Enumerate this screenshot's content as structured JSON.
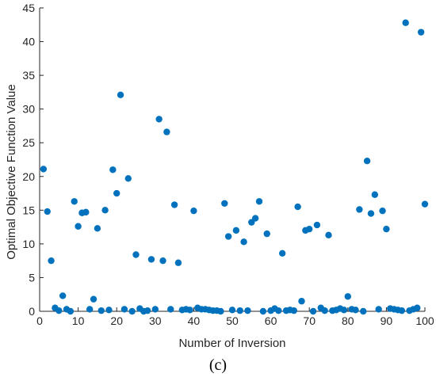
{
  "caption": "(c)",
  "colors": {
    "marker": "#0072BD",
    "axis": "#262626"
  },
  "chart_data": {
    "type": "scatter",
    "title": "",
    "xlabel": "Number of Inversion",
    "ylabel": "Optimal Objective Function Value",
    "xlim": [
      0,
      100
    ],
    "ylim": [
      0,
      45
    ],
    "xticks": [
      0,
      10,
      20,
      30,
      40,
      50,
      60,
      70,
      80,
      90,
      100
    ],
    "yticks": [
      0,
      5,
      10,
      15,
      20,
      25,
      30,
      35,
      40,
      45
    ],
    "grid": false,
    "legend": "none",
    "points": [
      [
        1,
        21.1
      ],
      [
        2,
        14.8
      ],
      [
        3,
        7.5
      ],
      [
        4,
        0.5
      ],
      [
        5,
        0.1
      ],
      [
        6,
        2.3
      ],
      [
        7,
        0.3
      ],
      [
        8,
        0.0
      ],
      [
        9,
        16.3
      ],
      [
        10,
        12.6
      ],
      [
        11,
        14.6
      ],
      [
        12,
        14.7
      ],
      [
        13,
        0.3
      ],
      [
        14,
        1.8
      ],
      [
        15,
        12.3
      ],
      [
        16,
        0.1
      ],
      [
        17,
        15.0
      ],
      [
        18,
        0.2
      ],
      [
        19,
        21.0
      ],
      [
        20,
        17.5
      ],
      [
        21,
        32.1
      ],
      [
        22,
        0.3
      ],
      [
        23,
        19.7
      ],
      [
        24,
        0.0
      ],
      [
        25,
        8.4
      ],
      [
        26,
        0.4
      ],
      [
        27,
        0.0
      ],
      [
        28,
        0.1
      ],
      [
        29,
        7.7
      ],
      [
        30,
        0.3
      ],
      [
        31,
        28.5
      ],
      [
        32,
        7.5
      ],
      [
        33,
        26.6
      ],
      [
        34,
        0.3
      ],
      [
        35,
        15.8
      ],
      [
        36,
        7.2
      ],
      [
        37,
        0.2
      ],
      [
        38,
        0.3
      ],
      [
        39,
        0.2
      ],
      [
        40,
        14.9
      ],
      [
        41,
        0.5
      ],
      [
        42,
        0.3
      ],
      [
        43,
        0.3
      ],
      [
        44,
        0.2
      ],
      [
        45,
        0.1
      ],
      [
        46,
        0.1
      ],
      [
        47,
        0.0
      ],
      [
        48,
        16.0
      ],
      [
        49,
        11.1
      ],
      [
        50,
        0.2
      ],
      [
        51,
        12.0
      ],
      [
        52,
        0.1
      ],
      [
        53,
        10.3
      ],
      [
        54,
        0.1
      ],
      [
        55,
        13.2
      ],
      [
        56,
        13.8
      ],
      [
        57,
        16.3
      ],
      [
        58,
        0.0
      ],
      [
        59,
        11.5
      ],
      [
        60,
        0.1
      ],
      [
        61,
        0.4
      ],
      [
        62,
        0.1
      ],
      [
        63,
        8.6
      ],
      [
        64,
        0.1
      ],
      [
        65,
        0.2
      ],
      [
        66,
        0.1
      ],
      [
        67,
        15.5
      ],
      [
        68,
        1.5
      ],
      [
        69,
        12.0
      ],
      [
        70,
        12.2
      ],
      [
        71,
        0.0
      ],
      [
        72,
        12.8
      ],
      [
        73,
        0.5
      ],
      [
        74,
        0.1
      ],
      [
        75,
        11.3
      ],
      [
        76,
        0.1
      ],
      [
        77,
        0.2
      ],
      [
        78,
        0.4
      ],
      [
        79,
        0.2
      ],
      [
        80,
        2.2
      ],
      [
        81,
        0.3
      ],
      [
        82,
        0.2
      ],
      [
        83,
        15.1
      ],
      [
        84,
        0.0
      ],
      [
        85,
        22.3
      ],
      [
        86,
        14.5
      ],
      [
        87,
        17.3
      ],
      [
        88,
        0.3
      ],
      [
        89,
        14.9
      ],
      [
        90,
        12.2
      ],
      [
        91,
        0.4
      ],
      [
        92,
        0.3
      ],
      [
        93,
        0.2
      ],
      [
        94,
        0.1
      ],
      [
        95,
        42.8
      ],
      [
        96,
        0.1
      ],
      [
        97,
        0.3
      ],
      [
        98,
        0.5
      ],
      [
        99,
        41.4
      ],
      [
        100,
        15.9
      ]
    ]
  }
}
